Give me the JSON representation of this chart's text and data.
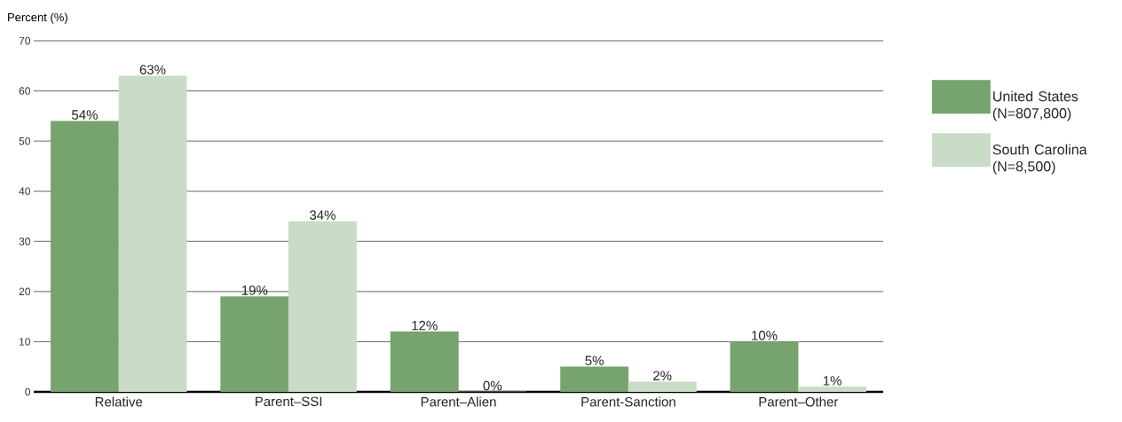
{
  "chart_data": {
    "type": "bar",
    "ylabel": "Percent (%)",
    "categories": [
      "Relative",
      "Parent–SSI",
      "Parent–Alien",
      "Parent-Sanction",
      "Parent–Other"
    ],
    "series": [
      {
        "name": "United States (N=807,800)",
        "color": "#76a36e",
        "values": [
          54,
          19,
          12,
          5,
          10
        ],
        "value_labels": [
          "54%",
          "19%",
          "12%",
          "5%",
          "10%"
        ]
      },
      {
        "name": "South Carolina (N=8,500)",
        "color": "#c9dcc6",
        "values": [
          63,
          34,
          0,
          2,
          1
        ],
        "value_labels": [
          "63%",
          "34%",
          "0%",
          "2%",
          "1%"
        ]
      }
    ],
    "ylim": [
      0,
      70
    ],
    "yticks": [
      0,
      10,
      20,
      30,
      40,
      50,
      60,
      70
    ],
    "grid": "y",
    "legend": "right"
  }
}
